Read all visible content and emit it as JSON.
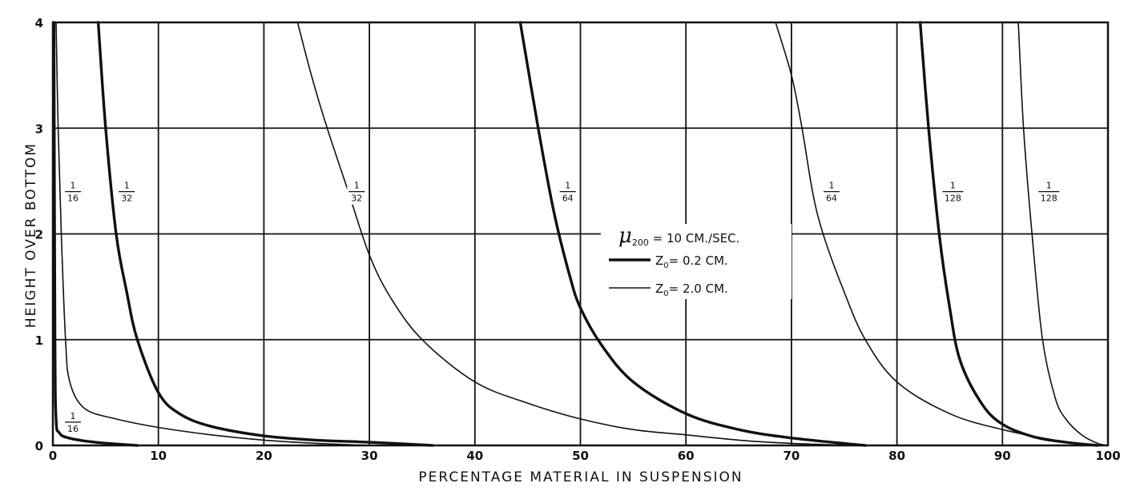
{
  "chart_data": {
    "type": "line",
    "xlabel": "PERCENTAGE MATERIAL IN SUSPENSION",
    "ylabel": "HEIGHT OVER BOTTOM",
    "xlim": [
      0,
      100
    ],
    "ylim": [
      0,
      4
    ],
    "x_ticks": [
      "0",
      "10",
      "20",
      "30",
      "40",
      "50",
      "60",
      "70",
      "80",
      "90",
      "100"
    ],
    "y_ticks": [
      "0",
      "1",
      "2",
      "3",
      "4"
    ],
    "grid": true,
    "legend": {
      "title_symbol": "μ",
      "title_subscript": "200",
      "title_rest": " = 10 CM./SEC.",
      "position": "center-right",
      "items": [
        {
          "label": "Z",
          "subscript": "0",
          "rest": "= 0.2 CM.",
          "style": "thick"
        },
        {
          "label": "Z",
          "subscript": "0",
          "rest": "= 2.0 CM.",
          "style": "thin"
        }
      ]
    },
    "series": [
      {
        "label": "1/16",
        "style": "thin",
        "points": [
          [
            0.3,
            4
          ],
          [
            0.5,
            3
          ],
          [
            0.8,
            2
          ],
          [
            1.2,
            1
          ],
          [
            1.6,
            0.6
          ],
          [
            3,
            0.35
          ],
          [
            6,
            0.25
          ],
          [
            10,
            0.17
          ],
          [
            15,
            0.1
          ],
          [
            20,
            0.05
          ],
          [
            25,
            0.02
          ],
          [
            30,
            0
          ]
        ]
      },
      {
        "label": "1/16",
        "style": "thick",
        "points": [
          [
            0.1,
            4
          ],
          [
            0.2,
            1
          ],
          [
            0.3,
            0.25
          ],
          [
            0.6,
            0.12
          ],
          [
            1.5,
            0.07
          ],
          [
            4,
            0.03
          ],
          [
            8,
            0
          ]
        ]
      },
      {
        "label": "1/32",
        "style": "thick",
        "points": [
          [
            4.3,
            4
          ],
          [
            5,
            3
          ],
          [
            6,
            2
          ],
          [
            7,
            1.45
          ],
          [
            8,
            1
          ],
          [
            10,
            0.5
          ],
          [
            12,
            0.3
          ],
          [
            15,
            0.18
          ],
          [
            20,
            0.09
          ],
          [
            25,
            0.05
          ],
          [
            30,
            0.03
          ],
          [
            36,
            0
          ]
        ]
      },
      {
        "label": "1/32",
        "style": "thin",
        "points": [
          [
            23.2,
            4
          ],
          [
            24.5,
            3.5
          ],
          [
            26,
            3
          ],
          [
            28,
            2.4
          ],
          [
            30,
            1.8
          ],
          [
            32,
            1.4
          ],
          [
            35,
            1
          ],
          [
            40,
            0.6
          ],
          [
            45,
            0.4
          ],
          [
            50,
            0.25
          ],
          [
            55,
            0.15
          ],
          [
            60,
            0.1
          ],
          [
            65,
            0.05
          ],
          [
            70,
            0.02
          ],
          [
            76,
            0
          ]
        ]
      },
      {
        "label": "1/64",
        "style": "thick",
        "points": [
          [
            44.3,
            4
          ],
          [
            46,
            3
          ],
          [
            47.5,
            2.2
          ],
          [
            49,
            1.6
          ],
          [
            50,
            1.3
          ],
          [
            52,
            0.95
          ],
          [
            55,
            0.6
          ],
          [
            60,
            0.3
          ],
          [
            65,
            0.15
          ],
          [
            70,
            0.07
          ],
          [
            77,
            0
          ]
        ]
      },
      {
        "label": "1/64",
        "style": "thin",
        "points": [
          [
            68.5,
            4
          ],
          [
            70,
            3.5
          ],
          [
            71,
            3
          ],
          [
            72,
            2.4
          ],
          [
            73,
            2
          ],
          [
            75,
            1.45
          ],
          [
            77,
            1
          ],
          [
            80,
            0.6
          ],
          [
            85,
            0.3
          ],
          [
            90,
            0.15
          ],
          [
            95,
            0.05
          ],
          [
            99,
            0
          ]
        ]
      },
      {
        "label": "1/128",
        "style": "thick",
        "points": [
          [
            82.2,
            4
          ],
          [
            83,
            3
          ],
          [
            84,
            2
          ],
          [
            85,
            1.3
          ],
          [
            86,
            0.8
          ],
          [
            88,
            0.4
          ],
          [
            90,
            0.2
          ],
          [
            93,
            0.08
          ],
          [
            96,
            0.03
          ],
          [
            99,
            0
          ]
        ]
      },
      {
        "label": "1/128",
        "style": "thin",
        "points": [
          [
            91.5,
            4
          ],
          [
            92,
            3
          ],
          [
            92.8,
            2
          ],
          [
            93.8,
            1
          ],
          [
            95,
            0.45
          ],
          [
            96,
            0.25
          ],
          [
            97.5,
            0.1
          ],
          [
            99,
            0.02
          ],
          [
            100,
            0
          ]
        ]
      }
    ],
    "annotations": [
      {
        "num": "1",
        "den": "16",
        "x": 1.9,
        "y": 2.4
      },
      {
        "num": "1",
        "den": "32",
        "x": 7.0,
        "y": 2.4
      },
      {
        "num": "1",
        "den": "32",
        "x": 28.8,
        "y": 2.4
      },
      {
        "num": "1",
        "den": "64",
        "x": 48.8,
        "y": 2.4
      },
      {
        "num": "1",
        "den": "64",
        "x": 73.8,
        "y": 2.4
      },
      {
        "num": "1",
        "den": "128",
        "x": 85.3,
        "y": 2.4
      },
      {
        "num": "1",
        "den": "128",
        "x": 94.4,
        "y": 2.4
      },
      {
        "num": "1",
        "den": "16",
        "x": 1.9,
        "y": 0.22
      }
    ]
  }
}
